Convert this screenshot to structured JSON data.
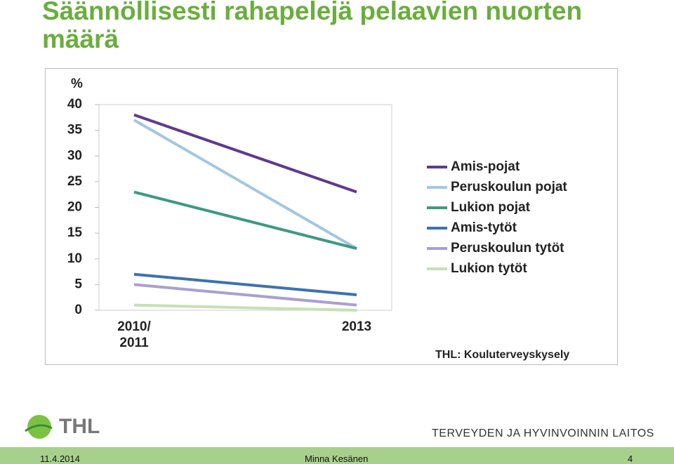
{
  "slide": {
    "title": "Säännöllisesti rahapelejä pelaavien nuorten määrä",
    "logo_text": "THL",
    "org_name": "TERVEYDEN JA HYVINVOINNIN LAITOS",
    "date": "11.4.2014",
    "author": "Minna Kesänen",
    "page": "4"
  },
  "chart_data": {
    "type": "line",
    "y_label": "%",
    "source": "THL: Kouluterveyskysely",
    "categories": [
      "2010/ 2011",
      "2013"
    ],
    "series": [
      {
        "name": "Amis-pojat",
        "color": "#5f3a8e",
        "values": [
          38,
          23
        ]
      },
      {
        "name": "Peruskoulun pojat",
        "color": "#a3c7e2",
        "values": [
          37,
          12
        ]
      },
      {
        "name": "Lukion pojat",
        "color": "#3c9a80",
        "values": [
          23,
          12
        ]
      },
      {
        "name": "Amis-tytöt",
        "color": "#3b72b2",
        "values": [
          7,
          3
        ]
      },
      {
        "name": "Peruskoulun tytöt",
        "color": "#a8a0d2",
        "values": [
          5,
          1
        ]
      },
      {
        "name": "Lukion tytöt",
        "color": "#c6e0b4",
        "values": [
          1,
          0
        ]
      }
    ],
    "ylim": [
      0,
      40
    ],
    "yticks": [
      0,
      5,
      10,
      15,
      20,
      25,
      30,
      35,
      40
    ]
  }
}
